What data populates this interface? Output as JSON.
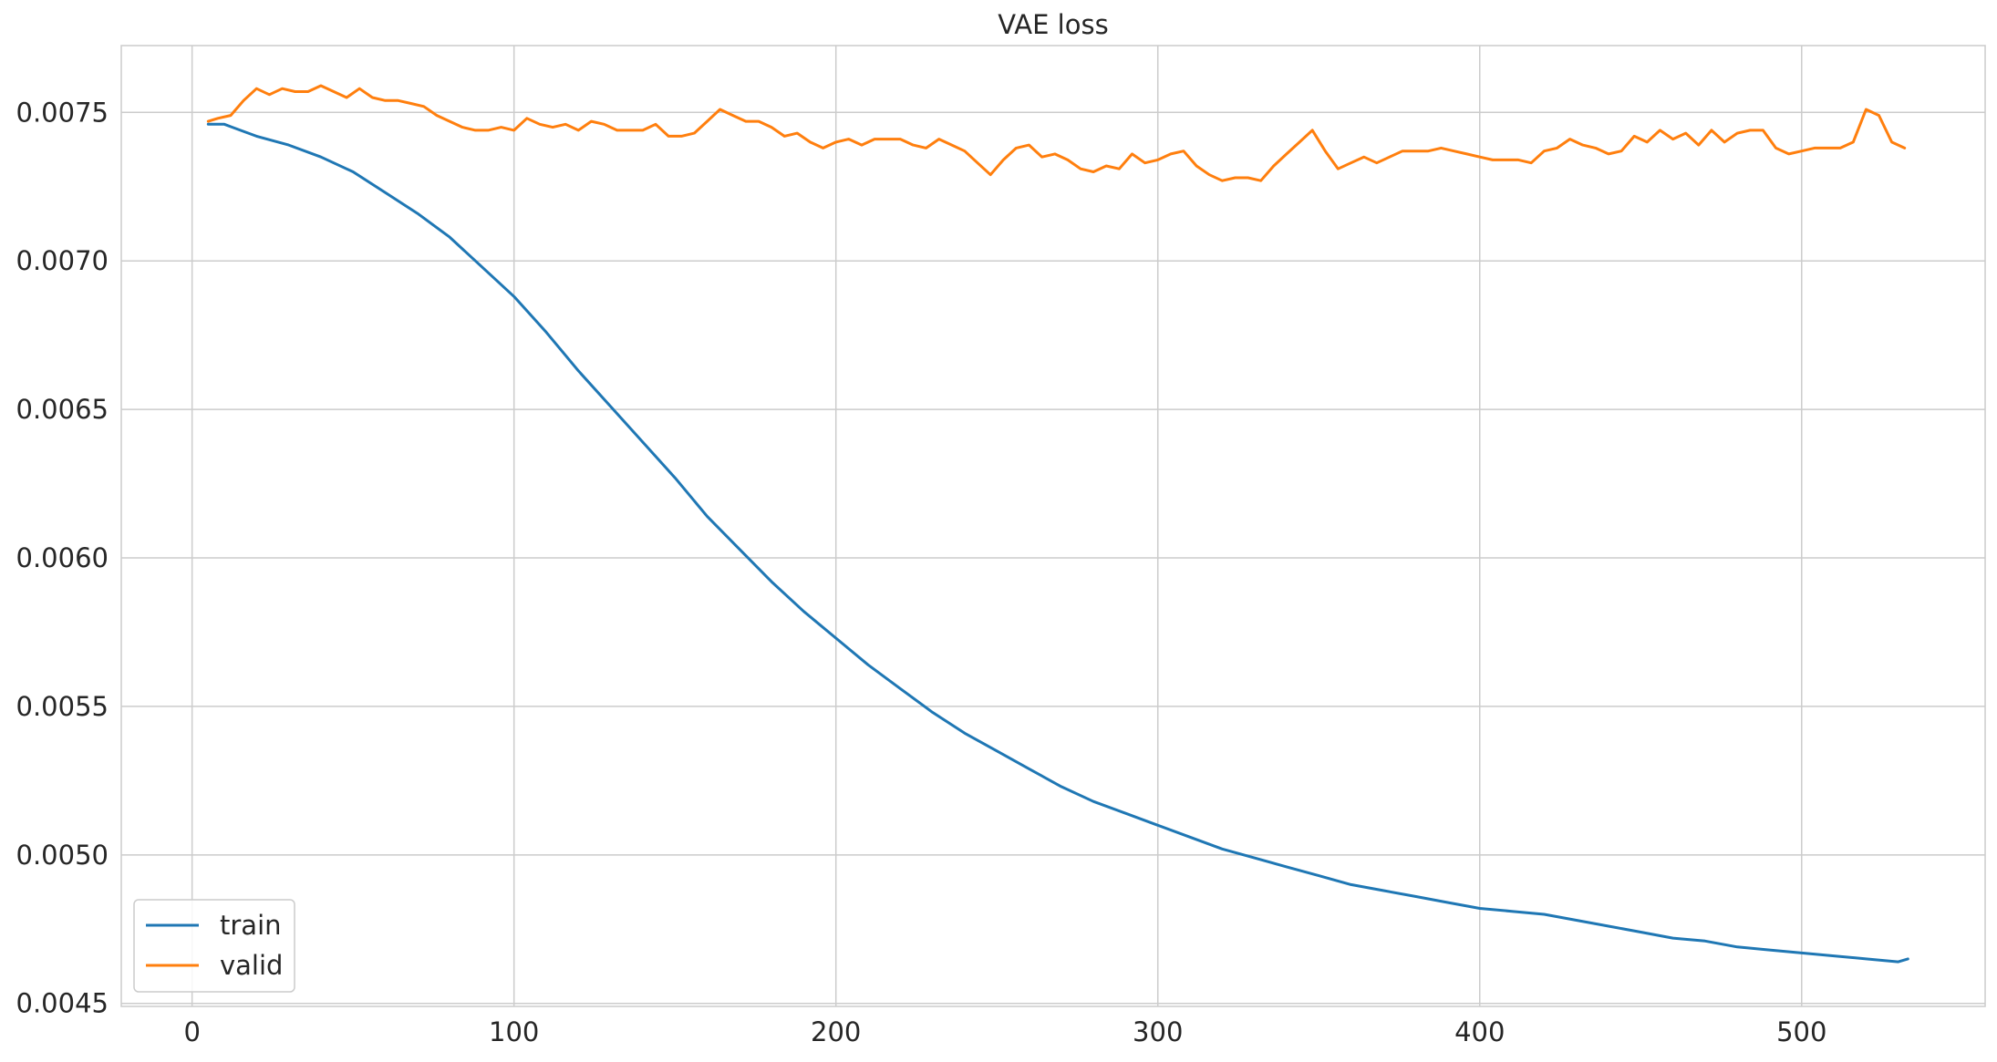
{
  "chart_data": {
    "type": "line",
    "title": "VAE loss",
    "xlabel": "",
    "ylabel": "",
    "xlim": [
      -22,
      557
    ],
    "ylim": [
      0.00449,
      0.007725
    ],
    "xticks": [
      0,
      100,
      200,
      300,
      400,
      500
    ],
    "yticks": [
      0.0045,
      0.005,
      0.0055,
      0.006,
      0.0065,
      0.007,
      0.0075
    ],
    "ytick_labels": [
      "0.0045",
      "0.0050",
      "0.0055",
      "0.0060",
      "0.0065",
      "0.0070",
      "0.0075"
    ],
    "grid": true,
    "legend_position": "lower-left",
    "series": [
      {
        "name": "train",
        "color": "#1f77b4",
        "x": [
          5,
          10,
          15,
          20,
          30,
          40,
          50,
          60,
          70,
          80,
          90,
          100,
          110,
          120,
          130,
          140,
          150,
          160,
          170,
          180,
          190,
          200,
          210,
          220,
          230,
          240,
          250,
          260,
          270,
          280,
          290,
          300,
          310,
          320,
          330,
          340,
          350,
          360,
          370,
          380,
          390,
          400,
          410,
          420,
          430,
          440,
          450,
          460,
          470,
          480,
          490,
          500,
          510,
          520,
          530,
          533
        ],
        "y": [
          0.00746,
          0.00746,
          0.00744,
          0.00742,
          0.00739,
          0.00735,
          0.0073,
          0.00723,
          0.00716,
          0.00708,
          0.00698,
          0.00688,
          0.00676,
          0.00663,
          0.00651,
          0.00639,
          0.00627,
          0.00614,
          0.00603,
          0.00592,
          0.00582,
          0.00573,
          0.00564,
          0.00556,
          0.00548,
          0.00541,
          0.00535,
          0.00529,
          0.00523,
          0.00518,
          0.00514,
          0.0051,
          0.00506,
          0.00502,
          0.00499,
          0.00496,
          0.00493,
          0.0049,
          0.00488,
          0.00486,
          0.00484,
          0.00482,
          0.00481,
          0.0048,
          0.00478,
          0.00476,
          0.00474,
          0.00472,
          0.00471,
          0.00469,
          0.00468,
          0.00467,
          0.00466,
          0.00465,
          0.00464,
          0.00465
        ]
      },
      {
        "name": "valid",
        "color": "#ff7f0e",
        "x": [
          5,
          8,
          12,
          16,
          20,
          24,
          28,
          32,
          36,
          40,
          44,
          48,
          52,
          56,
          60,
          64,
          68,
          72,
          76,
          80,
          84,
          88,
          92,
          96,
          100,
          104,
          108,
          112,
          116,
          120,
          124,
          128,
          132,
          136,
          140,
          144,
          148,
          152,
          156,
          160,
          164,
          168,
          172,
          176,
          180,
          184,
          188,
          192,
          196,
          200,
          204,
          208,
          212,
          216,
          220,
          224,
          228,
          232,
          236,
          240,
          244,
          248,
          252,
          256,
          260,
          264,
          268,
          272,
          276,
          280,
          284,
          288,
          292,
          296,
          300,
          304,
          308,
          312,
          316,
          320,
          324,
          328,
          332,
          336,
          340,
          344,
          348,
          352,
          356,
          360,
          364,
          368,
          372,
          376,
          380,
          384,
          388,
          392,
          396,
          400,
          404,
          408,
          412,
          416,
          420,
          424,
          428,
          432,
          436,
          440,
          444,
          448,
          452,
          456,
          460,
          464,
          468,
          472,
          476,
          480,
          484,
          488,
          492,
          496,
          500,
          504,
          508,
          512,
          516,
          520,
          524,
          528,
          532
        ],
        "y": [
          0.00747,
          0.00748,
          0.00749,
          0.00754,
          0.00758,
          0.00756,
          0.00758,
          0.00757,
          0.00757,
          0.00759,
          0.00757,
          0.00755,
          0.00758,
          0.00755,
          0.00754,
          0.00754,
          0.00753,
          0.00752,
          0.00749,
          0.00747,
          0.00745,
          0.00744,
          0.00744,
          0.00745,
          0.00744,
          0.00748,
          0.00746,
          0.00745,
          0.00746,
          0.00744,
          0.00747,
          0.00746,
          0.00744,
          0.00744,
          0.00744,
          0.00746,
          0.00742,
          0.00742,
          0.00743,
          0.00747,
          0.00751,
          0.00749,
          0.00747,
          0.00747,
          0.00745,
          0.00742,
          0.00743,
          0.0074,
          0.00738,
          0.0074,
          0.00741,
          0.00739,
          0.00741,
          0.00741,
          0.00741,
          0.00739,
          0.00738,
          0.00741,
          0.00739,
          0.00737,
          0.00733,
          0.00729,
          0.00734,
          0.00738,
          0.00739,
          0.00735,
          0.00736,
          0.00734,
          0.00731,
          0.0073,
          0.00732,
          0.00731,
          0.00736,
          0.00733,
          0.00734,
          0.00736,
          0.00737,
          0.00732,
          0.00729,
          0.00727,
          0.00728,
          0.00728,
          0.00727,
          0.00732,
          0.00736,
          0.0074,
          0.00744,
          0.00737,
          0.00731,
          0.00733,
          0.00735,
          0.00733,
          0.00735,
          0.00737,
          0.00737,
          0.00737,
          0.00738,
          0.00737,
          0.00736,
          0.00735,
          0.00734,
          0.00734,
          0.00734,
          0.00733,
          0.00737,
          0.00738,
          0.00741,
          0.00739,
          0.00738,
          0.00736,
          0.00737,
          0.00742,
          0.0074,
          0.00744,
          0.00741,
          0.00743,
          0.00739,
          0.00744,
          0.0074,
          0.00743,
          0.00744,
          0.00744,
          0.00738,
          0.00736,
          0.00737,
          0.00738,
          0.00738,
          0.00738,
          0.0074,
          0.00751,
          0.00749,
          0.0074,
          0.00738
        ]
      }
    ]
  }
}
